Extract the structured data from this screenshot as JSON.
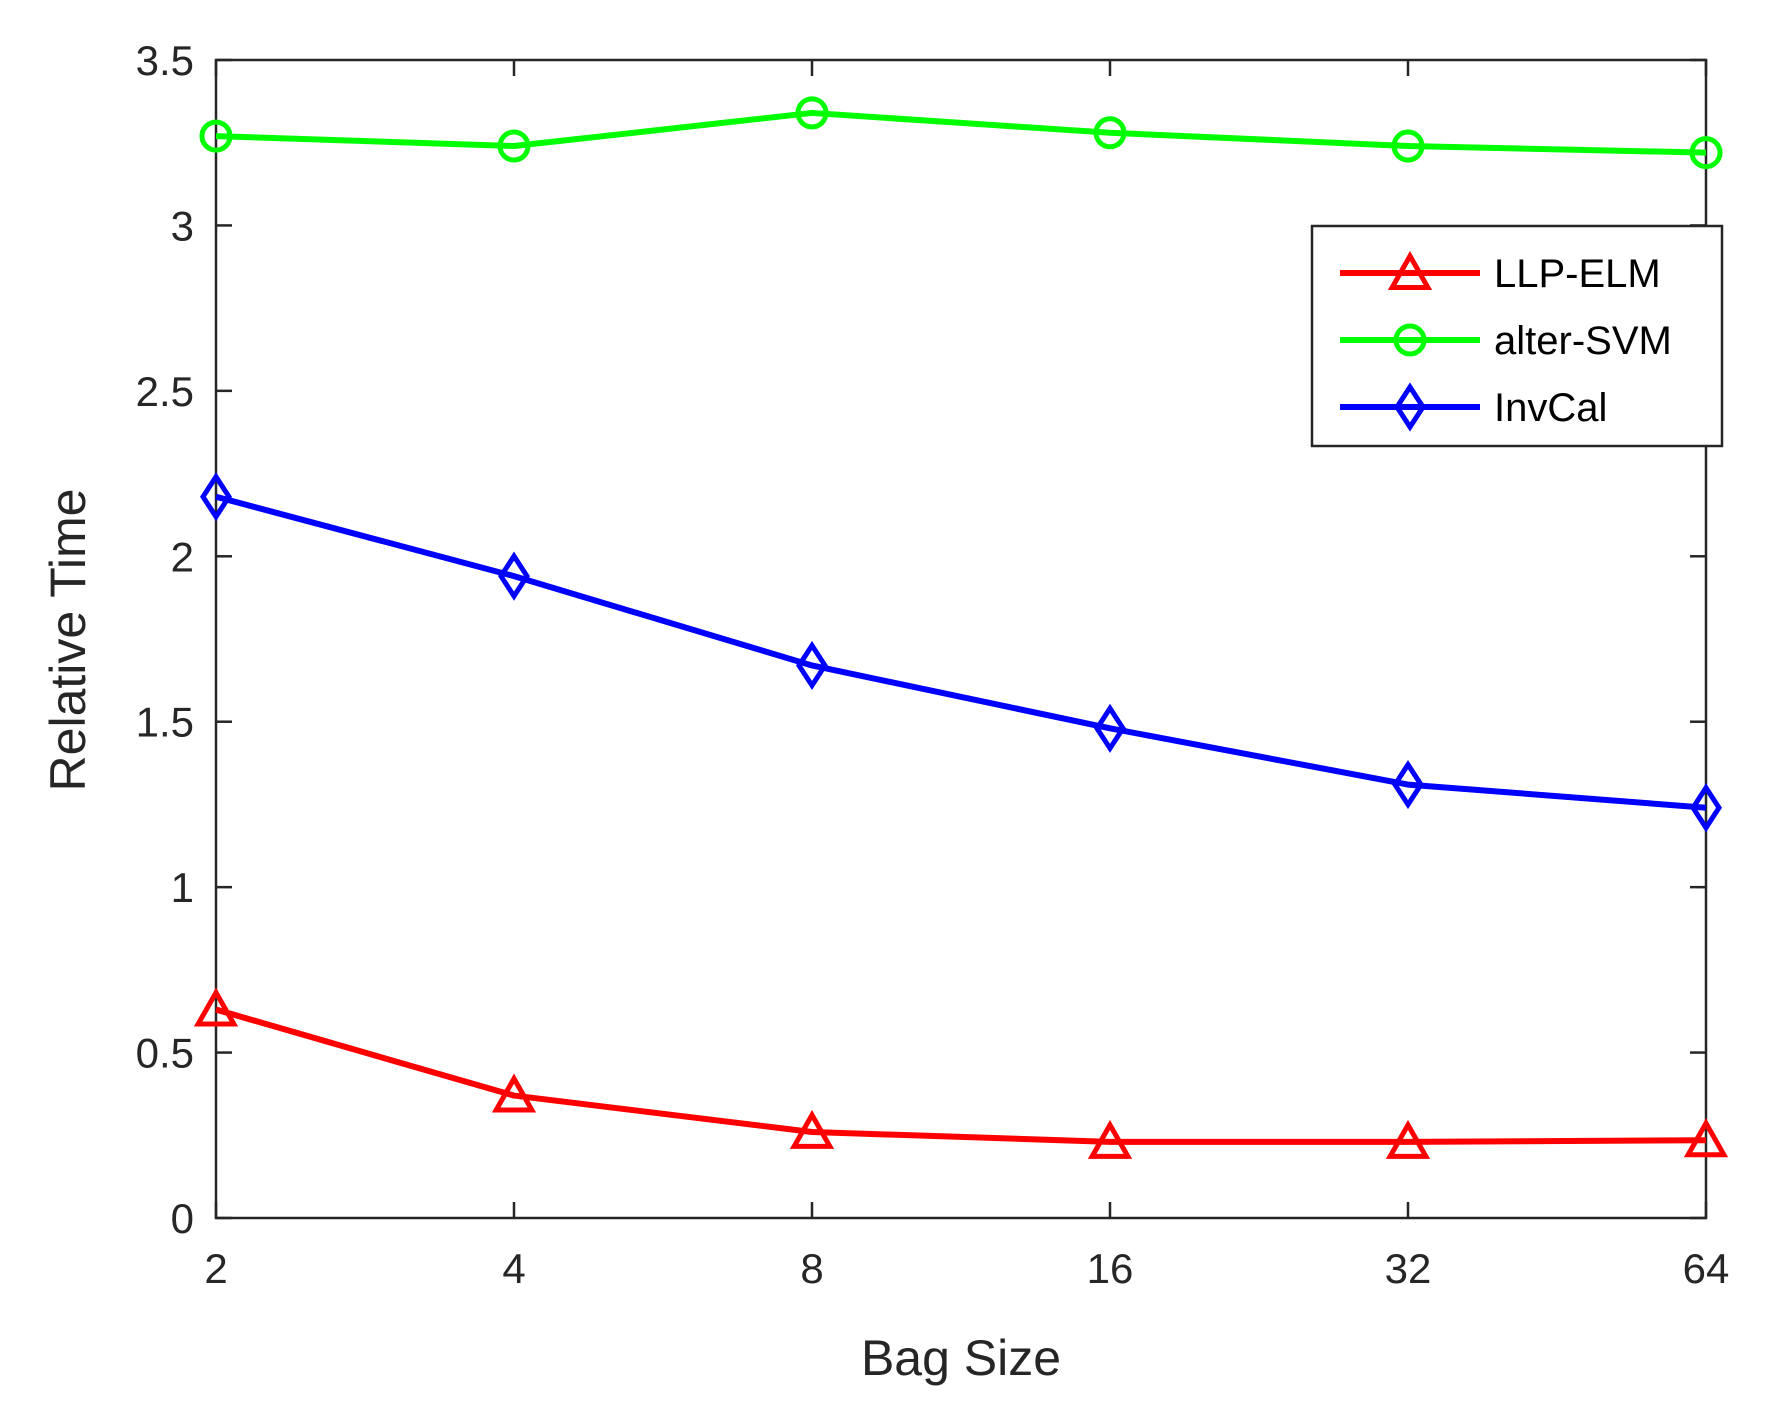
{
  "chart_data": {
    "type": "line",
    "title": "",
    "xlabel": "Bag Size",
    "ylabel": "Relative Time",
    "categories": [
      "2",
      "4",
      "8",
      "16",
      "32",
      "64"
    ],
    "ylim": [
      0,
      3.5
    ],
    "yticks": [
      "0",
      "0.5",
      "1",
      "1.5",
      "2",
      "2.5",
      "3",
      "3.5"
    ],
    "grid": false,
    "legend_position": "top-right",
    "series": [
      {
        "name": "LLP-ELM",
        "color": "#ff0000",
        "marker": "triangle",
        "values": [
          0.63,
          0.37,
          0.26,
          0.23,
          0.23,
          0.235
        ]
      },
      {
        "name": "alter-SVM",
        "color": "#00ff00",
        "marker": "circle",
        "values": [
          3.27,
          3.24,
          3.34,
          3.28,
          3.24,
          3.22
        ]
      },
      {
        "name": "InvCal",
        "color": "#0000ff",
        "marker": "diamond",
        "values": [
          2.18,
          1.94,
          1.67,
          1.48,
          1.31,
          1.24
        ]
      }
    ]
  }
}
